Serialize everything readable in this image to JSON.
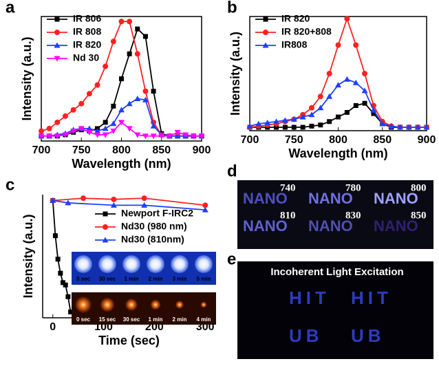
{
  "chart_data": [
    {
      "panel": "a",
      "type": "line",
      "x_label": "Wavelength (nm)",
      "y_label": "Intensity (a.u.)",
      "x": [
        700,
        710,
        720,
        730,
        740,
        750,
        760,
        770,
        780,
        790,
        800,
        810,
        820,
        830,
        840,
        850,
        860,
        870,
        880,
        890,
        900
      ],
      "xlim": [
        700,
        900
      ],
      "xticks": [
        700,
        750,
        800,
        850,
        900
      ],
      "ylim": [
        0,
        100
      ],
      "legend": "upper left",
      "series": [
        {
          "name": "IR 806",
          "color": "#000000",
          "marker": "square",
          "values": [
            4,
            4,
            4,
            5,
            7,
            9,
            8,
            10,
            15,
            28,
            50,
            70,
            90,
            84,
            40,
            6,
            4,
            4,
            4,
            4,
            4
          ]
        },
        {
          "name": "IR 808",
          "color": "#ff2020",
          "marker": "circle",
          "values": [
            8,
            10,
            15,
            20,
            25,
            30,
            38,
            45,
            60,
            80,
            96,
            96,
            70,
            40,
            15,
            5,
            4,
            4,
            4,
            4,
            4
          ]
        },
        {
          "name": "IR 820",
          "color": "#1f3fff",
          "marker": "triangle",
          "values": [
            4,
            4,
            5,
            6,
            9,
            10,
            10,
            8,
            10,
            14,
            25,
            30,
            34,
            33,
            12,
            5,
            4,
            4,
            4,
            4,
            4
          ]
        },
        {
          "name": "Nd  30",
          "color": "#ff00ff",
          "marker": "triangle-down",
          "values": [
            4,
            4,
            4,
            5,
            8,
            10,
            7,
            5,
            5,
            8,
            15,
            10,
            5,
            4,
            4,
            4,
            4,
            7,
            5,
            4,
            4
          ]
        }
      ]
    },
    {
      "panel": "b",
      "type": "line",
      "x_label": "Wavelength (nm)",
      "y_label": "Intensity (a.u.)",
      "x": [
        700,
        710,
        720,
        730,
        740,
        750,
        760,
        770,
        780,
        790,
        800,
        810,
        820,
        830,
        840,
        850,
        860,
        870,
        880,
        890,
        900
      ],
      "xlim": [
        700,
        900
      ],
      "xticks": [
        700,
        750,
        800,
        850,
        900
      ],
      "ylim": [
        0,
        100
      ],
      "legend": "upper left",
      "series": [
        {
          "name": "IR 820",
          "color": "#000000",
          "marker": "square",
          "values": [
            3,
            3,
            3,
            3,
            3,
            3,
            3,
            4,
            5,
            8,
            12,
            16,
            22,
            24,
            15,
            6,
            3,
            3,
            3,
            3,
            3
          ]
        },
        {
          "name": "IR 820+808",
          "color": "#ff2020",
          "marker": "circle",
          "values": [
            3,
            4,
            5,
            6,
            8,
            10,
            14,
            20,
            30,
            50,
            75,
            98,
            75,
            50,
            22,
            8,
            4,
            3,
            3,
            3,
            3
          ]
        },
        {
          "name": "IR808",
          "color": "#1f3fff",
          "marker": "triangle",
          "values": [
            4,
            6,
            7,
            8,
            9,
            10,
            12,
            14,
            20,
            30,
            40,
            45,
            42,
            35,
            18,
            6,
            4,
            3,
            3,
            3,
            3
          ]
        }
      ]
    },
    {
      "panel": "c",
      "type": "line",
      "x_label": "Time (sec)",
      "y_label": "Intensity (a.u.)",
      "xlim": [
        -20,
        320
      ],
      "xticks": [
        0,
        100,
        200,
        300
      ],
      "ylim": [
        0,
        105
      ],
      "legend": "center right",
      "series": [
        {
          "name": "Newport F-IRC2",
          "color": "#000000",
          "marker": "square",
          "x": [
            0,
            5,
            10,
            15,
            20,
            25,
            30,
            35
          ],
          "values": [
            100,
            70,
            50,
            38,
            30,
            28,
            18,
            5
          ]
        },
        {
          "name": "Nd30 (980 nm)",
          "color": "#ff2020",
          "marker": "circle",
          "x": [
            0,
            60,
            120,
            180,
            300
          ],
          "values": [
            100,
            102,
            101,
            102,
            96
          ]
        },
        {
          "name": "Nd30 (810nm)",
          "color": "#1f3fff",
          "marker": "triangle",
          "x": [
            0,
            30,
            120,
            180,
            300
          ],
          "values": [
            100,
            98,
            96,
            96,
            92
          ]
        }
      ]
    }
  ],
  "photos": {
    "c_rows": [
      [
        "0 sec",
        "30 sec",
        "1 min",
        "2 min",
        "3 min",
        "5 min"
      ],
      [
        "0 sec",
        "15 sec",
        "30 sec",
        "1 min",
        "2 min",
        "4 min"
      ]
    ],
    "d": {
      "panel": "d",
      "labels": [
        "740",
        "780",
        "800",
        "810",
        "830",
        "850"
      ],
      "word": "NANO"
    },
    "e": {
      "panel": "e",
      "title": "Incoherent Light Excitation",
      "words": [
        "HIT",
        "HIT",
        "UB",
        "UB"
      ]
    }
  }
}
